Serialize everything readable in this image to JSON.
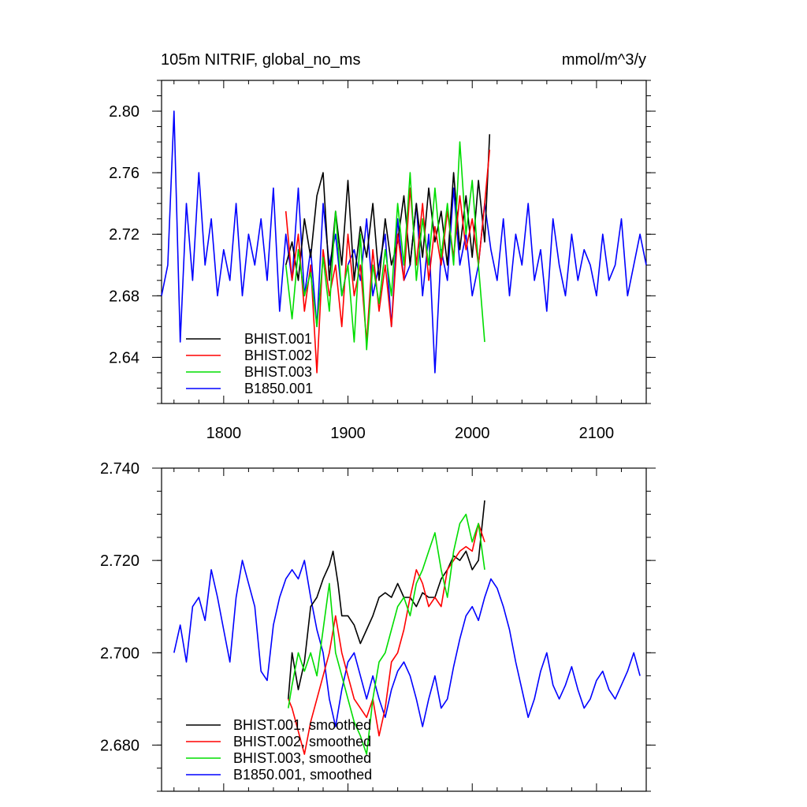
{
  "chart_data": [
    {
      "type": "line",
      "title_left": "105m NITRIF, global_no_ms",
      "title_right": "mmol/m^3/y",
      "xlim": [
        1750,
        2140
      ],
      "ylim": [
        2.61,
        2.82
      ],
      "xticks": [
        1800,
        1900,
        2000,
        2100
      ],
      "xtick_labels": [
        "1800",
        "1900",
        "2000",
        "2100"
      ],
      "yticks": [
        2.64,
        2.68,
        2.72,
        2.76,
        2.8
      ],
      "ytick_labels": [
        "2.64",
        "2.68",
        "2.72",
        "2.76",
        "2.80"
      ],
      "grid": false,
      "legend_position": "bottom-left",
      "series": [
        {
          "name": "BHIST.001",
          "color": "#000000",
          "x": [
            1850,
            1855,
            1860,
            1865,
            1870,
            1875,
            1880,
            1885,
            1890,
            1895,
            1900,
            1905,
            1910,
            1915,
            1920,
            1925,
            1930,
            1935,
            1940,
            1945,
            1950,
            1955,
            1960,
            1965,
            1970,
            1975,
            1980,
            1985,
            1990,
            1995,
            2000,
            2005,
            2010,
            2014
          ],
          "y": [
            2.7,
            2.715,
            2.69,
            2.73,
            2.705,
            2.745,
            2.76,
            2.69,
            2.735,
            2.7,
            2.755,
            2.69,
            2.725,
            2.705,
            2.74,
            2.69,
            2.73,
            2.7,
            2.715,
            2.745,
            2.7,
            2.74,
            2.705,
            2.75,
            2.715,
            2.735,
            2.7,
            2.76,
            2.71,
            2.745,
            2.705,
            2.755,
            2.715,
            2.785
          ]
        },
        {
          "name": "BHIST.002",
          "color": "#ff0000",
          "x": [
            1850,
            1855,
            1860,
            1865,
            1870,
            1875,
            1880,
            1885,
            1890,
            1895,
            1900,
            1905,
            1910,
            1915,
            1920,
            1925,
            1930,
            1935,
            1940,
            1945,
            1950,
            1955,
            1960,
            1965,
            1970,
            1975,
            1980,
            1985,
            1990,
            1995,
            2000,
            2005,
            2010,
            2014
          ],
          "y": [
            2.735,
            2.69,
            2.72,
            2.67,
            2.7,
            2.63,
            2.71,
            2.68,
            2.7,
            2.66,
            2.72,
            2.68,
            2.7,
            2.65,
            2.71,
            2.67,
            2.7,
            2.66,
            2.72,
            2.69,
            2.75,
            2.7,
            2.74,
            2.69,
            2.725,
            2.7,
            2.735,
            2.705,
            2.745,
            2.71,
            2.73,
            2.7,
            2.74,
            2.775
          ]
        },
        {
          "name": "BHIST.003",
          "color": "#00dd00",
          "x": [
            1850,
            1855,
            1860,
            1865,
            1870,
            1875,
            1880,
            1885,
            1890,
            1895,
            1900,
            1905,
            1910,
            1915,
            1920,
            1925,
            1930,
            1935,
            1940,
            1945,
            1950,
            1955,
            1960,
            1965,
            1970,
            1975,
            1980,
            1985,
            1990,
            1995,
            2000,
            2005,
            2010
          ],
          "y": [
            2.7,
            2.665,
            2.71,
            2.68,
            2.695,
            2.66,
            2.705,
            2.67,
            2.735,
            2.68,
            2.7,
            2.65,
            2.72,
            2.645,
            2.7,
            2.675,
            2.71,
            2.68,
            2.74,
            2.7,
            2.76,
            2.69,
            2.73,
            2.7,
            2.75,
            2.705,
            2.74,
            2.7,
            2.78,
            2.72,
            2.755,
            2.7,
            2.65
          ]
        },
        {
          "name": "B1850.001",
          "color": "#0000ff",
          "x": [
            1750,
            1755,
            1760,
            1765,
            1770,
            1775,
            1780,
            1785,
            1790,
            1795,
            1800,
            1805,
            1810,
            1815,
            1820,
            1825,
            1830,
            1835,
            1840,
            1845,
            1850,
            1855,
            1860,
            1865,
            1870,
            1875,
            1880,
            1885,
            1890,
            1895,
            1900,
            1905,
            1910,
            1915,
            1920,
            1925,
            1930,
            1935,
            1940,
            1945,
            1950,
            1955,
            1960,
            1965,
            1970,
            1975,
            1980,
            1985,
            1990,
            1995,
            2000,
            2005,
            2010,
            2015,
            2020,
            2025,
            2030,
            2035,
            2040,
            2045,
            2050,
            2055,
            2060,
            2065,
            2070,
            2075,
            2080,
            2085,
            2090,
            2095,
            2100,
            2105,
            2110,
            2115,
            2120,
            2125,
            2130,
            2135,
            2140
          ],
          "y": [
            2.68,
            2.7,
            2.8,
            2.65,
            2.74,
            2.69,
            2.76,
            2.7,
            2.73,
            2.68,
            2.71,
            2.69,
            2.74,
            2.68,
            2.72,
            2.7,
            2.73,
            2.69,
            2.75,
            2.67,
            2.72,
            2.69,
            2.75,
            2.68,
            2.71,
            2.66,
            2.74,
            2.7,
            2.72,
            2.68,
            2.7,
            2.71,
            2.69,
            2.73,
            2.68,
            2.7,
            2.72,
            2.66,
            2.73,
            2.69,
            2.7,
            2.74,
            2.68,
            2.72,
            2.63,
            2.71,
            2.69,
            2.75,
            2.7,
            2.72,
            2.68,
            2.7,
            2.74,
            2.71,
            2.69,
            2.73,
            2.68,
            2.72,
            2.7,
            2.74,
            2.69,
            2.71,
            2.67,
            2.73,
            2.7,
            2.68,
            2.72,
            2.69,
            2.71,
            2.7,
            2.68,
            2.72,
            2.69,
            2.7,
            2.73,
            2.68,
            2.7,
            2.72,
            2.7
          ]
        }
      ]
    },
    {
      "type": "line",
      "xlim": [
        1750,
        2140
      ],
      "ylim": [
        2.67,
        2.74
      ],
      "xticks": [
        1800,
        1900,
        2000,
        2100
      ],
      "yticks": [
        2.68,
        2.7,
        2.72,
        2.74
      ],
      "ytick_labels": [
        "2.680",
        "2.700",
        "2.720",
        "2.740"
      ],
      "grid": false,
      "legend_position": "bottom-left",
      "series": [
        {
          "name": "BHIST.001, smoothed",
          "color": "#000000",
          "x": [
            1852,
            1855,
            1860,
            1865,
            1870,
            1875,
            1880,
            1885,
            1888,
            1892,
            1895,
            1900,
            1905,
            1910,
            1915,
            1920,
            1925,
            1930,
            1935,
            1940,
            1945,
            1950,
            1955,
            1960,
            1965,
            1970,
            1975,
            1980,
            1985,
            1990,
            1995,
            2000,
            2005,
            2010
          ],
          "y": [
            2.69,
            2.7,
            2.692,
            2.698,
            2.71,
            2.712,
            2.716,
            2.719,
            2.722,
            2.715,
            2.708,
            2.708,
            2.706,
            2.702,
            2.705,
            2.708,
            2.712,
            2.713,
            2.712,
            2.715,
            2.712,
            2.712,
            2.71,
            2.713,
            2.712,
            2.712,
            2.716,
            2.718,
            2.721,
            2.72,
            2.722,
            2.718,
            2.72,
            2.733
          ]
        },
        {
          "name": "BHIST.002, smoothed",
          "color": "#ff0000",
          "x": [
            1852,
            1855,
            1860,
            1865,
            1870,
            1875,
            1880,
            1885,
            1890,
            1895,
            1900,
            1905,
            1910,
            1915,
            1920,
            1925,
            1930,
            1935,
            1940,
            1945,
            1950,
            1955,
            1960,
            1965,
            1970,
            1975,
            1980,
            1985,
            1990,
            1995,
            2000,
            2005,
            2010
          ],
          "y": [
            2.69,
            2.688,
            2.683,
            2.678,
            2.685,
            2.69,
            2.695,
            2.7,
            2.708,
            2.7,
            2.695,
            2.69,
            2.688,
            2.686,
            2.69,
            2.682,
            2.688,
            2.698,
            2.7,
            2.705,
            2.712,
            2.718,
            2.715,
            2.71,
            2.712,
            2.71,
            2.718,
            2.72,
            2.722,
            2.723,
            2.722,
            2.728,
            2.724
          ]
        },
        {
          "name": "BHIST.003, smoothed",
          "color": "#00dd00",
          "x": [
            1852,
            1855,
            1860,
            1865,
            1870,
            1875,
            1880,
            1885,
            1890,
            1895,
            1900,
            1905,
            1910,
            1915,
            1920,
            1925,
            1930,
            1935,
            1940,
            1945,
            1950,
            1955,
            1960,
            1965,
            1970,
            1975,
            1980,
            1985,
            1990,
            1995,
            2000,
            2005,
            2010
          ],
          "y": [
            2.688,
            2.693,
            2.7,
            2.696,
            2.7,
            2.695,
            2.705,
            2.715,
            2.7,
            2.695,
            2.69,
            2.685,
            2.682,
            2.678,
            2.69,
            2.698,
            2.7,
            2.705,
            2.71,
            2.712,
            2.708,
            2.715,
            2.718,
            2.722,
            2.726,
            2.718,
            2.712,
            2.722,
            2.728,
            2.73,
            2.724,
            2.728,
            2.718
          ]
        },
        {
          "name": "B1850.001, smoothed",
          "color": "#0000ff",
          "x": [
            1760,
            1765,
            1770,
            1775,
            1780,
            1785,
            1790,
            1795,
            1800,
            1805,
            1810,
            1815,
            1820,
            1825,
            1830,
            1835,
            1840,
            1845,
            1850,
            1855,
            1860,
            1865,
            1870,
            1875,
            1880,
            1885,
            1890,
            1895,
            1900,
            1905,
            1910,
            1915,
            1920,
            1925,
            1930,
            1935,
            1940,
            1945,
            1950,
            1955,
            1960,
            1965,
            1970,
            1975,
            1980,
            1985,
            1990,
            1995,
            2000,
            2005,
            2010,
            2015,
            2020,
            2025,
            2030,
            2035,
            2040,
            2045,
            2050,
            2055,
            2060,
            2065,
            2070,
            2075,
            2080,
            2085,
            2090,
            2095,
            2100,
            2105,
            2110,
            2115,
            2120,
            2125,
            2130,
            2135
          ],
          "y": [
            2.7,
            2.706,
            2.698,
            2.71,
            2.712,
            2.707,
            2.718,
            2.712,
            2.705,
            2.698,
            2.712,
            2.72,
            2.715,
            2.71,
            2.696,
            2.694,
            2.706,
            2.712,
            2.716,
            2.718,
            2.716,
            2.72,
            2.712,
            2.705,
            2.7,
            2.69,
            2.684,
            2.692,
            2.698,
            2.7,
            2.695,
            2.69,
            2.695,
            2.69,
            2.686,
            2.692,
            2.696,
            2.698,
            2.695,
            2.69,
            2.684,
            2.69,
            2.695,
            2.688,
            2.69,
            2.697,
            2.703,
            2.708,
            2.71,
            2.707,
            2.712,
            2.716,
            2.714,
            2.71,
            2.705,
            2.698,
            2.692,
            2.686,
            2.69,
            2.696,
            2.7,
            2.693,
            2.69,
            2.693,
            2.697,
            2.692,
            2.688,
            2.69,
            2.694,
            2.696,
            2.692,
            2.69,
            2.693,
            2.696,
            2.7,
            2.695
          ]
        }
      ]
    }
  ]
}
